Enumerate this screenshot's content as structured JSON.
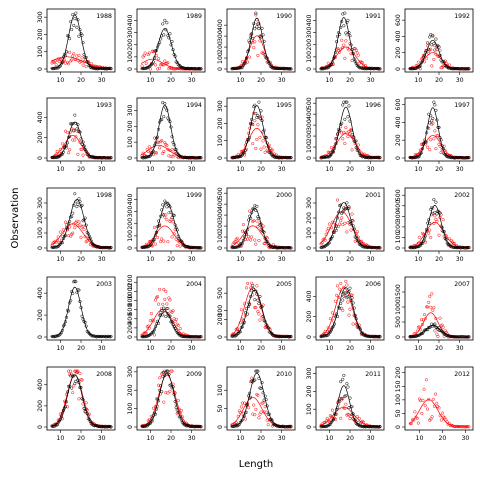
{
  "chart_data": {
    "type": "scatter",
    "xlabel": "Length",
    "ylabel": "Observation",
    "grid": false,
    "legend": "none",
    "colors": {
      "black_series": "#000000",
      "red_series": "#ff0000",
      "frame": "#000000"
    },
    "series_style": {
      "markers": "open-circle",
      "lines": "smooth-curve"
    },
    "panels": [
      {
        "year": "1988",
        "xlim": [
          5,
          35
        ],
        "xticks": [
          10,
          20,
          30
        ],
        "ylim": [
          0,
          330
        ],
        "yticks": [
          0,
          100,
          200,
          300
        ],
        "black_peak": [
          17,
          310
        ],
        "black_sd": 3.0,
        "black_noise": 0.25,
        "red_peak": [
          13,
          70
        ],
        "red_sd": 8.0,
        "red_noise": 0.6
      },
      {
        "year": "1989",
        "xlim": [
          5,
          35
        ],
        "xticks": [
          10,
          20,
          30
        ],
        "ylim": [
          0,
          470
        ],
        "yticks": [
          0,
          100,
          200,
          300,
          400
        ],
        "black_peak": [
          17,
          330
        ],
        "black_sd": 3.2,
        "black_noise": 0.25,
        "red_peak": [
          11,
          80
        ],
        "red_sd": 5.0,
        "red_noise": 1.1
      },
      {
        "year": "1990",
        "xlim": [
          5,
          35
        ],
        "xticks": [
          10,
          20,
          30
        ],
        "ylim": [
          0,
          520
        ],
        "yticks": [
          0,
          100,
          200,
          300,
          400
        ],
        "black_peak": [
          18,
          460
        ],
        "black_sd": 2.8,
        "black_noise": 0.25,
        "red_peak": [
          18,
          300
        ],
        "red_sd": 3.5,
        "red_noise": 0.7
      },
      {
        "year": "1991",
        "xlim": [
          5,
          35
        ],
        "xticks": [
          10,
          20,
          30
        ],
        "ylim": [
          0,
          470
        ],
        "yticks": [
          0,
          100,
          200,
          300,
          400
        ],
        "black_peak": [
          17,
          420
        ],
        "black_sd": 2.8,
        "black_noise": 0.25,
        "red_peak": [
          18,
          180
        ],
        "red_sd": 4.5,
        "red_noise": 0.6
      },
      {
        "year": "1992",
        "xlim": [
          5,
          35
        ],
        "xticks": [
          10,
          20,
          30
        ],
        "ylim": [
          0,
          700
        ],
        "yticks": [
          0,
          200,
          400,
          600
        ],
        "black_peak": [
          17,
          350
        ],
        "black_sd": 3.0,
        "black_noise": 0.3,
        "red_peak": [
          17,
          200
        ],
        "red_sd": 4.0,
        "red_noise": 1.0
      },
      {
        "year": "1993",
        "xlim": [
          5,
          35
        ],
        "xticks": [
          10,
          20,
          30
        ],
        "ylim": [
          0,
          560
        ],
        "yticks": [
          0,
          200,
          400
        ],
        "black_peak": [
          17,
          350
        ],
        "black_sd": 3.0,
        "black_noise": 0.25,
        "red_peak": [
          16,
          220
        ],
        "red_sd": 4.0,
        "red_noise": 0.8
      },
      {
        "year": "1994",
        "xlim": [
          5,
          35
        ],
        "xticks": [
          10,
          20,
          30
        ],
        "ylim": [
          0,
          360
        ],
        "yticks": [
          0,
          100,
          200,
          300
        ],
        "black_peak": [
          17,
          330
        ],
        "black_sd": 2.8,
        "black_noise": 0.2,
        "red_peak": [
          14,
          80
        ],
        "red_sd": 5.0,
        "red_noise": 0.8
      },
      {
        "year": "1995",
        "xlim": [
          5,
          35
        ],
        "xticks": [
          10,
          20,
          30
        ],
        "ylim": [
          0,
          330
        ],
        "yticks": [
          0,
          100,
          200,
          300
        ],
        "black_peak": [
          18,
          300
        ],
        "black_sd": 3.0,
        "black_noise": 0.25,
        "red_peak": [
          18,
          170
        ],
        "red_sd": 4.0,
        "red_noise": 0.7
      },
      {
        "year": "1996",
        "xlim": [
          5,
          35
        ],
        "xticks": [
          10,
          20,
          30
        ],
        "ylim": [
          0,
          520
        ],
        "yticks": [
          0,
          100,
          200,
          300,
          400,
          500
        ],
        "black_peak": [
          18,
          460
        ],
        "black_sd": 3.0,
        "black_noise": 0.25,
        "red_peak": [
          18,
          220
        ],
        "red_sd": 4.5,
        "red_noise": 0.6
      },
      {
        "year": "1997",
        "xlim": [
          5,
          35
        ],
        "xticks": [
          10,
          20,
          30
        ],
        "ylim": [
          0,
          640
        ],
        "yticks": [
          0,
          200,
          400,
          600
        ],
        "black_peak": [
          17,
          560
        ],
        "black_sd": 2.6,
        "black_noise": 0.25,
        "red_peak": [
          17,
          250
        ],
        "red_sd": 4.0,
        "red_noise": 0.6
      },
      {
        "year": "1998",
        "xlim": [
          5,
          35
        ],
        "xticks": [
          10,
          20,
          30
        ],
        "ylim": [
          0,
          380
        ],
        "yticks": [
          0,
          100,
          200,
          300
        ],
        "black_peak": [
          18,
          320
        ],
        "black_sd": 3.5,
        "black_noise": 0.2,
        "red_peak": [
          16,
          160
        ],
        "red_sd": 5.0,
        "red_noise": 0.5
      },
      {
        "year": "1999",
        "xlim": [
          5,
          35
        ],
        "xticks": [
          10,
          20,
          30
        ],
        "ylim": [
          0,
          470
        ],
        "yticks": [
          0,
          100,
          200,
          300,
          400
        ],
        "black_peak": [
          18,
          370
        ],
        "black_sd": 3.5,
        "black_noise": 0.2,
        "red_peak": [
          17,
          180
        ],
        "red_sd": 4.5,
        "red_noise": 0.8
      },
      {
        "year": "2000",
        "xlim": [
          5,
          35
        ],
        "xticks": [
          10,
          20,
          30
        ],
        "ylim": [
          0,
          520
        ],
        "yticks": [
          0,
          100,
          200,
          300,
          400,
          500
        ],
        "black_peak": [
          17,
          360
        ],
        "black_sd": 3.0,
        "black_noise": 0.25,
        "red_peak": [
          16,
          200
        ],
        "red_sd": 4.5,
        "red_noise": 0.9
      },
      {
        "year": "2001",
        "xlim": [
          5,
          35
        ],
        "xticks": [
          10,
          20,
          30
        ],
        "ylim": [
          0,
          380
        ],
        "yticks": [
          0,
          100,
          200,
          300
        ],
        "black_peak": [
          17,
          300
        ],
        "black_sd": 3.5,
        "black_noise": 0.2,
        "red_peak": [
          16,
          240
        ],
        "red_sd": 5.0,
        "red_noise": 0.6
      },
      {
        "year": "2002",
        "xlim": [
          5,
          35
        ],
        "xticks": [
          10,
          20,
          30
        ],
        "ylim": [
          0,
          540
        ],
        "yticks": [
          0,
          100,
          200,
          300,
          400,
          500
        ],
        "black_peak": [
          18,
          400
        ],
        "black_sd": 3.0,
        "black_noise": 0.2,
        "red_peak": [
          18,
          240
        ],
        "red_sd": 4.5,
        "red_noise": 0.7
      },
      {
        "year": "2003",
        "xlim": [
          5,
          35
        ],
        "xticks": [
          10,
          20,
          30
        ],
        "ylim": [
          0,
          520
        ],
        "yticks": [
          0,
          200,
          400
        ],
        "black_peak": [
          17,
          450
        ],
        "black_sd": 3.0,
        "black_noise": 0.2,
        "red_peak": null,
        "red_sd": 0,
        "red_noise": 0
      },
      {
        "year": "2004",
        "xlim": [
          5,
          35
        ],
        "xticks": [
          10,
          20,
          30
        ],
        "ylim": [
          0,
          1250
        ],
        "yticks": [
          0,
          200,
          400,
          600,
          800,
          1000,
          1200
        ],
        "black_peak": [
          17,
          550
        ],
        "black_sd": 3.2,
        "black_noise": 0.2,
        "red_peak": [
          16,
          600
        ],
        "red_sd": 4.5,
        "red_noise": 0.9
      },
      {
        "year": "2005",
        "xlim": [
          5,
          35
        ],
        "xticks": [
          10,
          20,
          30
        ],
        "ylim": [
          0,
          650
        ],
        "yticks": [
          0,
          200,
          300,
          500
        ],
        "black_peak": [
          17,
          530
        ],
        "black_sd": 3.5,
        "black_noise": 0.2,
        "red_peak": [
          16,
          560
        ],
        "red_sd": 4.0,
        "red_noise": 0.5
      },
      {
        "year": "2006",
        "xlim": [
          5,
          35
        ],
        "xticks": [
          10,
          20,
          30
        ],
        "ylim": [
          0,
          560
        ],
        "yticks": [
          0,
          200,
          400
        ],
        "black_peak": [
          18,
          480
        ],
        "black_sd": 3.5,
        "black_noise": 0.2,
        "red_peak": [
          17,
          480
        ],
        "red_sd": 4.0,
        "red_noise": 0.5
      },
      {
        "year": "2007",
        "xlim": [
          5,
          35
        ],
        "xticks": [
          10,
          20,
          30
        ],
        "ylim": [
          0,
          1900
        ],
        "yticks": [
          0,
          500,
          1000,
          1500
        ],
        "black_peak": [
          17,
          380
        ],
        "black_sd": 3.5,
        "black_noise": 0.2,
        "red_peak": [
          16,
          800
        ],
        "red_sd": 3.5,
        "red_noise": 1.0
      },
      {
        "year": "2008",
        "xlim": [
          5,
          35
        ],
        "xticks": [
          10,
          20,
          30
        ],
        "ylim": [
          0,
          540
        ],
        "yticks": [
          0,
          200,
          400
        ],
        "black_peak": [
          17,
          490
        ],
        "black_sd": 3.5,
        "black_noise": 0.2,
        "red_peak": [
          17,
          490
        ],
        "red_sd": 3.8,
        "red_noise": 0.5
      },
      {
        "year": "2009",
        "xlim": [
          5,
          35
        ],
        "xticks": [
          10,
          20,
          30
        ],
        "ylim": [
          0,
          310
        ],
        "yticks": [
          0,
          100,
          200,
          300
        ],
        "black_peak": [
          18,
          290
        ],
        "black_sd": 3.5,
        "black_noise": 0.2,
        "red_peak": [
          18,
          280
        ],
        "red_sd": 4.0,
        "red_noise": 0.5
      },
      {
        "year": "2010",
        "xlim": [
          5,
          35
        ],
        "xticks": [
          10,
          20,
          30
        ],
        "ylim": [
          0,
          155
        ],
        "yticks": [
          0,
          50,
          100
        ],
        "black_peak": [
          18,
          145
        ],
        "black_sd": 3.5,
        "black_noise": 0.2,
        "red_peak": [
          16,
          80
        ],
        "red_sd": 4.5,
        "red_noise": 0.7
      },
      {
        "year": "2011",
        "xlim": [
          5,
          35
        ],
        "xticks": [
          10,
          20,
          30
        ],
        "ylim": [
          0,
          320
        ],
        "yticks": [
          0,
          100,
          200,
          300
        ],
        "black_peak": [
          17,
          230
        ],
        "black_sd": 2.8,
        "black_noise": 0.3,
        "red_peak": [
          17,
          110
        ],
        "red_sd": 5.0,
        "red_noise": 0.6
      },
      {
        "year": "2012",
        "xlim": [
          5,
          32
        ],
        "xticks": [
          10,
          20,
          30
        ],
        "ylim": [
          0,
          210
        ],
        "yticks": [
          0,
          50,
          100,
          150,
          200
        ],
        "black_peak": null,
        "black_sd": 0,
        "black_noise": 0,
        "red_peak": [
          14,
          100
        ],
        "red_sd": 4.0,
        "red_noise": 0.8
      }
    ]
  }
}
